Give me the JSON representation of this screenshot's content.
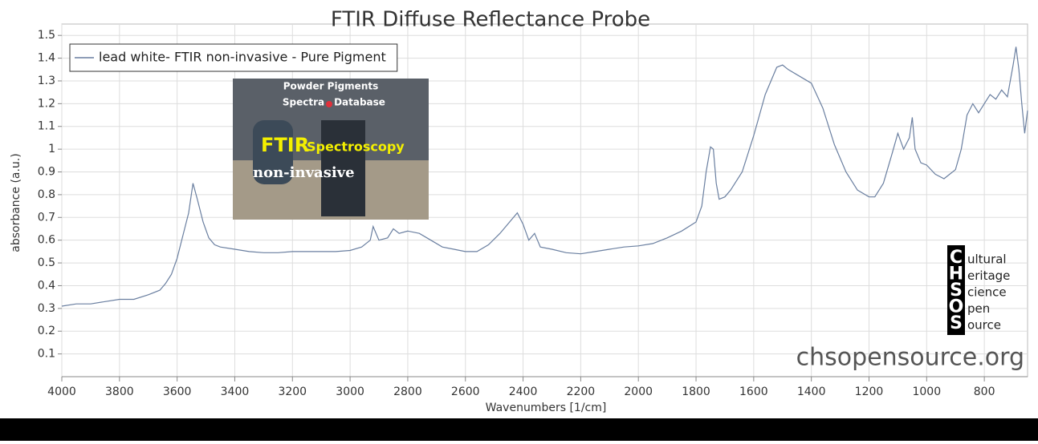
{
  "chart_data": {
    "type": "line",
    "title": "FTIR Diffuse Reflectance Probe",
    "x_label": "Wavenumbers [1/cm]",
    "y_label": "absorbance (a.u.)",
    "xlim": [
      4000,
      650
    ],
    "xticks": [
      4000,
      3800,
      3600,
      3400,
      3200,
      3000,
      2800,
      2600,
      2400,
      2200,
      2000,
      1800,
      1600,
      1400,
      1200,
      1000,
      800
    ],
    "ylim": [
      0,
      1.55
    ],
    "yticks": [
      0.1,
      0.2,
      0.3,
      0.4,
      0.5,
      0.6,
      0.7,
      0.8,
      0.9,
      1,
      1.1,
      1.2,
      1.3,
      1.4,
      1.5
    ],
    "grid": true,
    "legend": "top-left",
    "series": [
      {
        "name": "lead white- FTIR non-invasive - Pure Pigment",
        "color": "#6a7fa0",
        "x": [
          4000,
          3950,
          3900,
          3850,
          3800,
          3750,
          3700,
          3660,
          3640,
          3620,
          3600,
          3580,
          3560,
          3545,
          3530,
          3510,
          3490,
          3470,
          3450,
          3400,
          3350,
          3300,
          3250,
          3200,
          3150,
          3100,
          3050,
          3000,
          2960,
          2930,
          2920,
          2900,
          2870,
          2850,
          2830,
          2800,
          2760,
          2720,
          2680,
          2640,
          2600,
          2560,
          2520,
          2480,
          2440,
          2420,
          2400,
          2380,
          2360,
          2340,
          2300,
          2250,
          2200,
          2150,
          2100,
          2050,
          2000,
          1950,
          1900,
          1850,
          1800,
          1780,
          1765,
          1750,
          1740,
          1730,
          1720,
          1700,
          1680,
          1640,
          1600,
          1560,
          1520,
          1500,
          1480,
          1440,
          1400,
          1360,
          1320,
          1280,
          1240,
          1200,
          1180,
          1150,
          1120,
          1100,
          1080,
          1060,
          1050,
          1040,
          1020,
          1000,
          970,
          940,
          920,
          900,
          880,
          860,
          840,
          820,
          800,
          780,
          760,
          740,
          720,
          700,
          690,
          680,
          670,
          660,
          650
        ],
        "values": [
          0.31,
          0.32,
          0.32,
          0.33,
          0.34,
          0.34,
          0.36,
          0.38,
          0.41,
          0.45,
          0.52,
          0.62,
          0.72,
          0.85,
          0.78,
          0.68,
          0.61,
          0.58,
          0.57,
          0.56,
          0.55,
          0.545,
          0.545,
          0.55,
          0.55,
          0.55,
          0.55,
          0.555,
          0.57,
          0.6,
          0.66,
          0.6,
          0.61,
          0.65,
          0.63,
          0.64,
          0.63,
          0.6,
          0.57,
          0.56,
          0.55,
          0.55,
          0.58,
          0.63,
          0.69,
          0.72,
          0.67,
          0.6,
          0.63,
          0.57,
          0.56,
          0.545,
          0.54,
          0.55,
          0.56,
          0.57,
          0.575,
          0.585,
          0.61,
          0.64,
          0.68,
          0.75,
          0.9,
          1.01,
          1.0,
          0.85,
          0.78,
          0.79,
          0.82,
          0.9,
          1.06,
          1.24,
          1.36,
          1.37,
          1.35,
          1.32,
          1.29,
          1.18,
          1.02,
          0.9,
          0.82,
          0.79,
          0.79,
          0.85,
          0.98,
          1.07,
          1.0,
          1.05,
          1.14,
          1.0,
          0.94,
          0.93,
          0.89,
          0.87,
          0.89,
          0.91,
          1.0,
          1.15,
          1.2,
          1.16,
          1.2,
          1.24,
          1.22,
          1.26,
          1.23,
          1.37,
          1.45,
          1.35,
          1.2,
          1.07,
          1.17
        ]
      }
    ],
    "inset_texts": [
      "Powder Pigments",
      "Spectra",
      "Database",
      "FTIR",
      "Spectroscopy",
      "non-invasive"
    ],
    "logo": [
      {
        "initial": "C",
        "rest": "ultural"
      },
      {
        "initial": "H",
        "rest": "eritage"
      },
      {
        "initial": "S",
        "rest": "cience"
      },
      {
        "initial": "O",
        "rest": "pen"
      },
      {
        "initial": "S",
        "rest": "ource"
      }
    ],
    "watermark": "chsopensource.org"
  }
}
